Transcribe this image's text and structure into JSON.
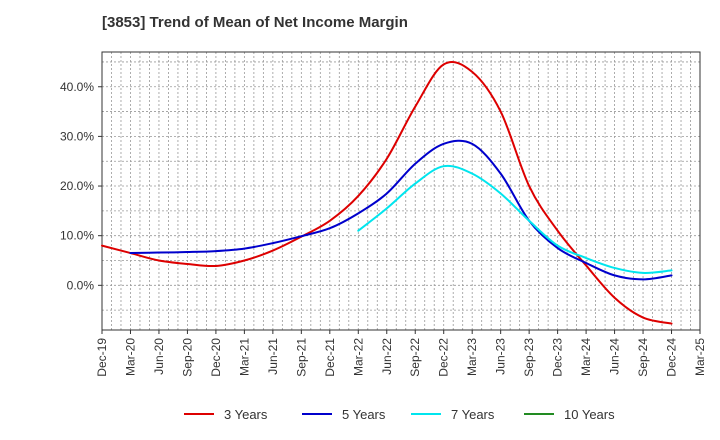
{
  "chart_data": {
    "type": "line",
    "title": "[3853]  Trend of Mean of Net Income Margin",
    "xlabel": "",
    "ylabel": "",
    "x": [
      "Dec-19",
      "Mar-20",
      "Jun-20",
      "Sep-20",
      "Dec-20",
      "Mar-21",
      "Jun-21",
      "Sep-21",
      "Dec-21",
      "Mar-22",
      "Jun-22",
      "Sep-22",
      "Dec-22",
      "Mar-23",
      "Jun-23",
      "Sep-23",
      "Dec-23",
      "Mar-24",
      "Jun-24",
      "Sep-24",
      "Dec-24",
      "Mar-25"
    ],
    "y_ticks": [
      {
        "value": 40,
        "label": "40.0%"
      },
      {
        "value": 30,
        "label": "30.0%"
      },
      {
        "value": 20,
        "label": "20.0%"
      },
      {
        "value": 10,
        "label": "10.0%"
      },
      {
        "value": 0,
        "label": "0.0%"
      }
    ],
    "ylim": [
      -9,
      47
    ],
    "grid": true,
    "legend_position": "bottom",
    "series": [
      {
        "name": "3 Years",
        "color": "#dd0000",
        "values": [
          8.0,
          6.5,
          5.0,
          4.3,
          3.9,
          5.0,
          7.0,
          9.8,
          13.0,
          18.0,
          25.5,
          36.0,
          44.5,
          43.0,
          35.0,
          20.0,
          11.0,
          4.0,
          -2.5,
          -6.5,
          -7.7,
          null
        ]
      },
      {
        "name": "5 Years",
        "color": "#0000cc",
        "values": [
          null,
          6.5,
          6.6,
          6.7,
          6.9,
          7.4,
          8.5,
          9.9,
          11.5,
          14.5,
          18.5,
          24.5,
          28.5,
          28.5,
          22.5,
          13.0,
          7.5,
          4.5,
          2.0,
          1.2,
          2.0,
          null
        ]
      },
      {
        "name": "7 Years",
        "color": "#00e5ee",
        "values": [
          null,
          null,
          null,
          null,
          null,
          null,
          null,
          null,
          null,
          11.0,
          15.5,
          20.5,
          24.0,
          22.5,
          18.5,
          13.0,
          8.0,
          5.5,
          3.5,
          2.5,
          3.0,
          null
        ]
      },
      {
        "name": "10 Years",
        "color": "#228b22",
        "values": [
          null,
          null,
          null,
          null,
          null,
          null,
          null,
          null,
          null,
          null,
          null,
          null,
          null,
          null,
          null,
          null,
          null,
          null,
          null,
          null,
          null,
          null
        ]
      }
    ]
  }
}
